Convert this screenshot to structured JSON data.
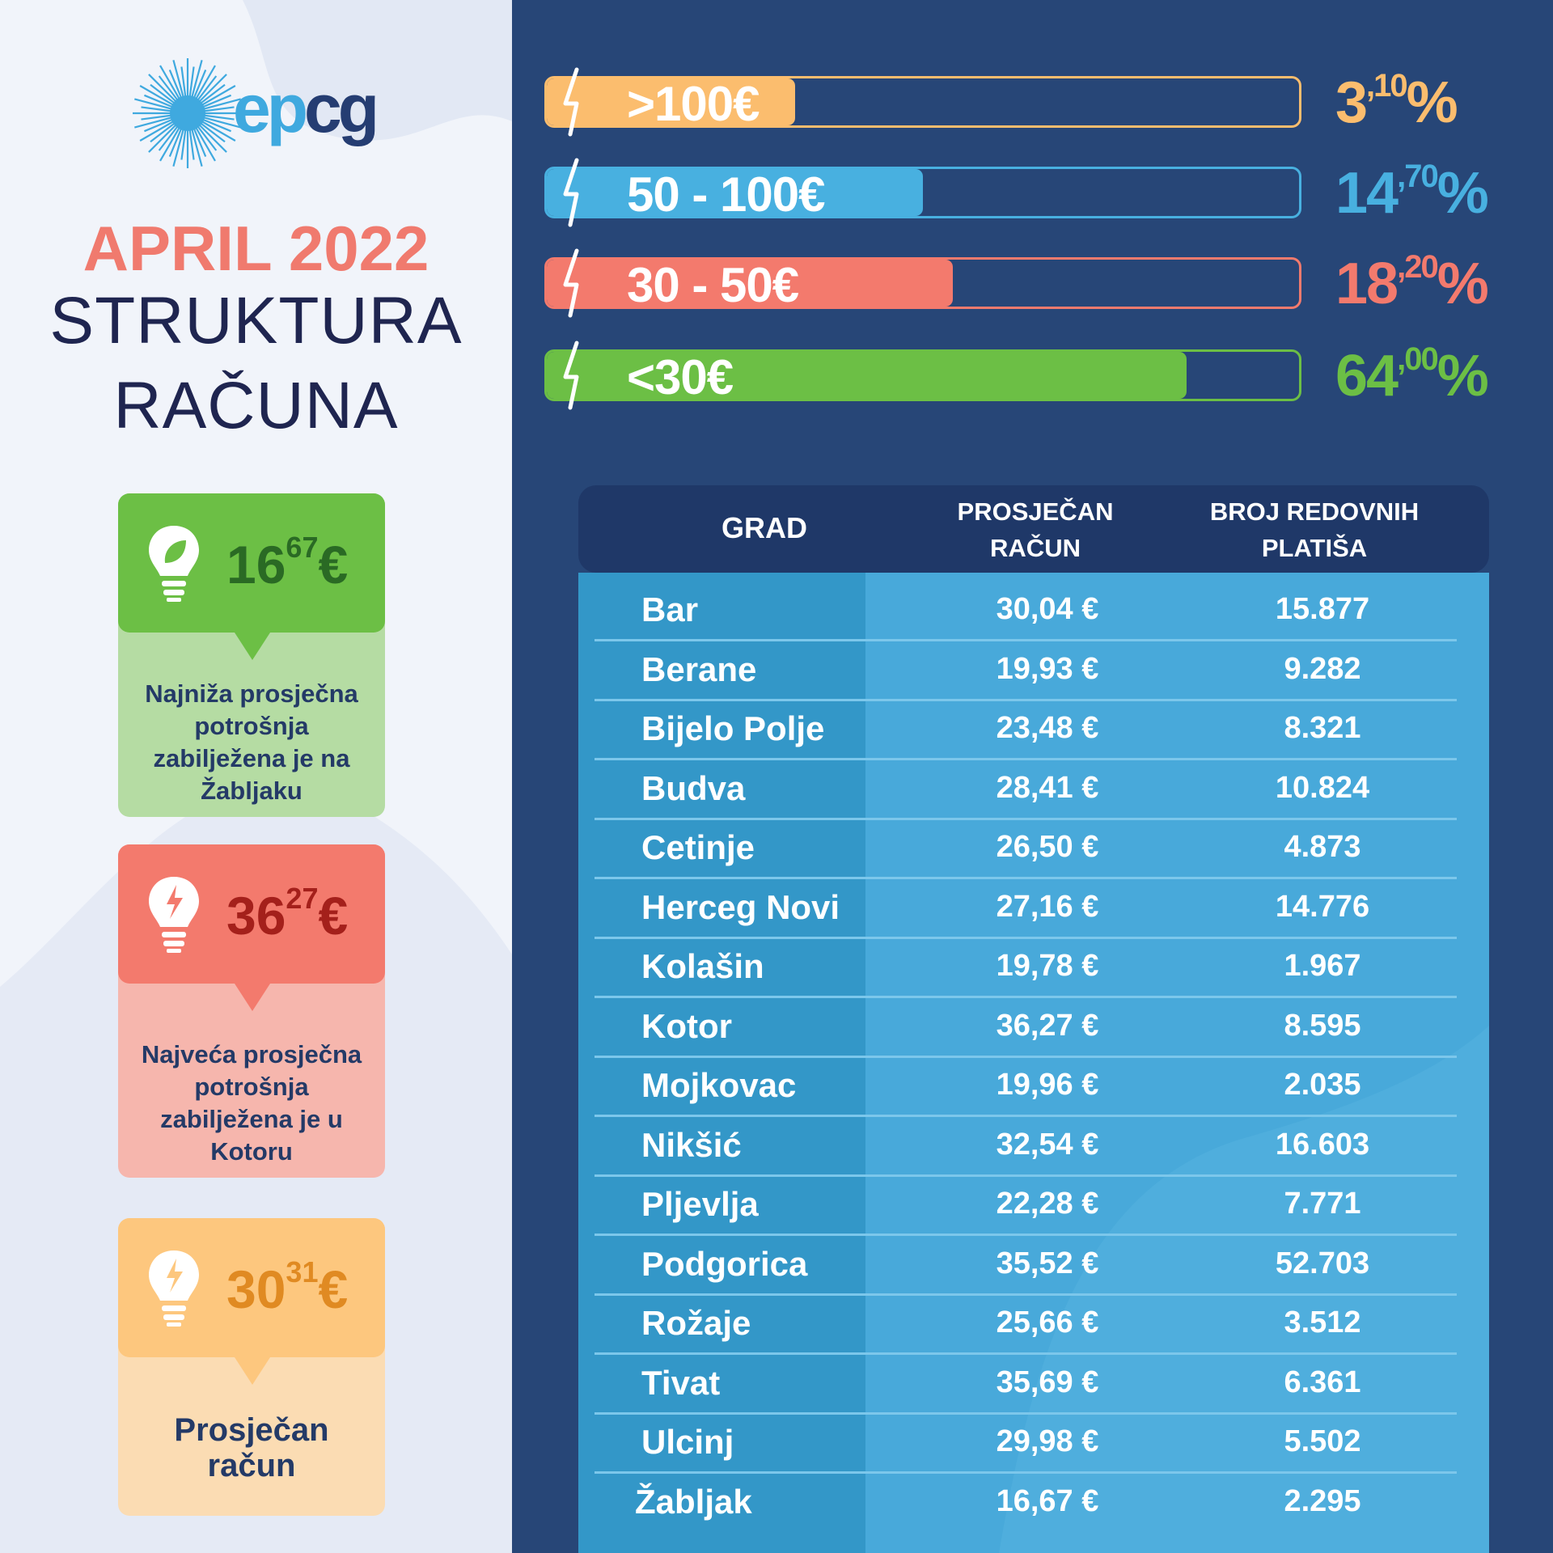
{
  "brand": {
    "logo_ep": "ep",
    "logo_cg": "cg"
  },
  "title": {
    "line1": "APRIL 2022",
    "line2": "STRUKTURA",
    "line3": "RAČUNA"
  },
  "cards": [
    {
      "value_int": "16",
      "value_dec": "67",
      "currency": "€",
      "text": "Najniža prosječna potrošnja zabilježena je na Žabljaku",
      "icon": "leaf-bulb-icon"
    },
    {
      "value_int": "36",
      "value_dec": "27",
      "currency": "€",
      "text": "Najveća prosječna potrošnja zabilježena je u Kotoru",
      "icon": "bolt-bulb-icon"
    },
    {
      "value_int": "30",
      "value_dec": "31",
      "currency": "€",
      "text": "Prosječan račun",
      "icon": "bolt-bulb-icon"
    }
  ],
  "chart_data": [
    {
      "type": "bar",
      "categories": [
        ">100€",
        "50 - 100€",
        "30 - 50€",
        "<30€"
      ],
      "values": [
        3.1,
        14.7,
        18.2,
        64.0
      ],
      "value_labels": [
        {
          "int": "3",
          "dec": ",10%"
        },
        {
          "int": "14",
          "dec": ",70%"
        },
        {
          "int": "18",
          "dec": ",20%"
        },
        {
          "int": "64",
          "dec": ",00%"
        }
      ],
      "colors": [
        "#fbbd6e",
        "#48b0e0",
        "#f37a6d",
        "#6cbf45"
      ],
      "fill_fraction": [
        0.33,
        0.5,
        0.54,
        0.85
      ]
    },
    {
      "type": "table",
      "columns": [
        "GRAD",
        "PROSJEČAN RAČUN",
        "BROJ REDOVNIH PLATIŠA"
      ],
      "column_lines": [
        [
          "GRAD"
        ],
        [
          "PROSJEČAN",
          "RAČUN"
        ],
        [
          "BROJ REDOVNIH",
          "PLATIŠA"
        ]
      ],
      "rows": [
        [
          "Bar",
          "30,04 €",
          "15.877"
        ],
        [
          "Berane",
          "19,93 €",
          "9.282"
        ],
        [
          "Bijelo Polje",
          "23,48 €",
          "8.321"
        ],
        [
          "Budva",
          "28,41 €",
          "10.824"
        ],
        [
          "Cetinje",
          "26,50 €",
          "4.873"
        ],
        [
          "Herceg Novi",
          "27,16 €",
          "14.776"
        ],
        [
          "Kolašin",
          "19,78 €",
          "1.967"
        ],
        [
          "Kotor",
          "36,27 €",
          "8.595"
        ],
        [
          "Mojkovac",
          "19,96 €",
          "2.035"
        ],
        [
          "Nikšić",
          "32,54 €",
          "16.603"
        ],
        [
          "Pljevlja",
          "22,28 €",
          "7.771"
        ],
        [
          "Podgorica",
          "35,52 €",
          "52.703"
        ],
        [
          "Rožaje",
          "25,66 €",
          "3.512"
        ],
        [
          "Tivat",
          "35,69 €",
          "6.361"
        ],
        [
          "Ulcinj",
          "29,98 €",
          "5.502"
        ],
        [
          "Žabljak",
          "16,67 €",
          "2.295"
        ]
      ]
    }
  ]
}
